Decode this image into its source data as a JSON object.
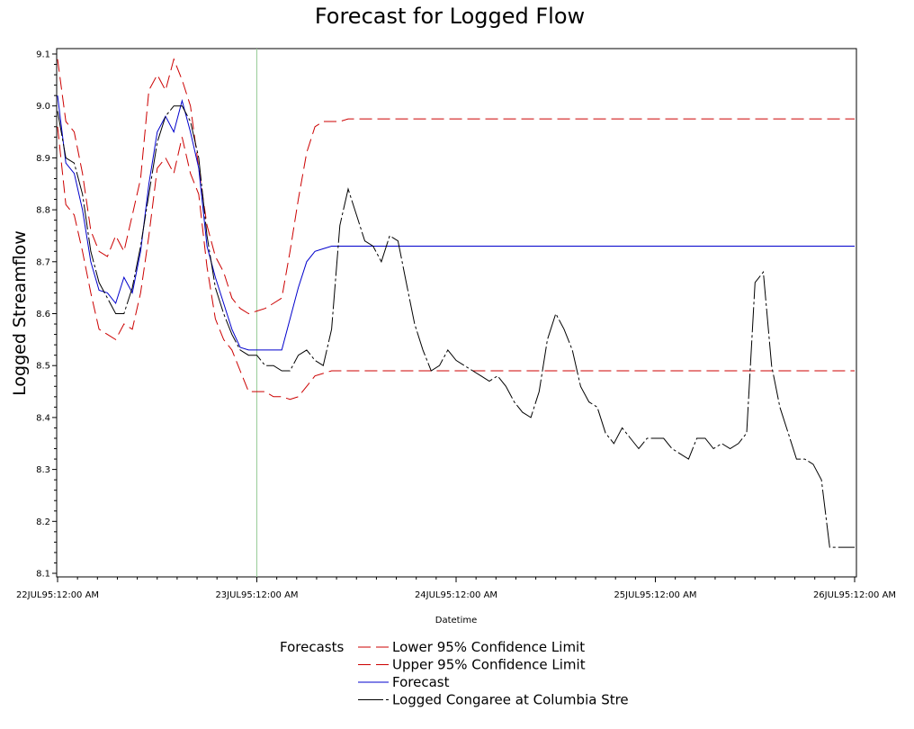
{
  "chart_data": {
    "type": "line",
    "title": "Forecast for Logged Flow",
    "xlabel": "Datetime",
    "ylabel": "Logged Streamflow",
    "x_range": [
      0,
      96
    ],
    "x_ticks": [
      {
        "pos": 0,
        "label": "22JUL95:12:00 AM"
      },
      {
        "pos": 24,
        "label": "23JUL95:12:00 AM"
      },
      {
        "pos": 48,
        "label": "24JUL95:12:00 AM"
      },
      {
        "pos": 72,
        "label": "25JUL95:12:00 AM"
      },
      {
        "pos": 96,
        "label": "26JUL95:12:00 AM"
      }
    ],
    "ylim": [
      8.09,
      9.11
    ],
    "y_ticks": [
      "8.1",
      "8.2",
      "8.3",
      "8.4",
      "8.5",
      "8.6",
      "8.7",
      "8.8",
      "8.9",
      "9.0",
      "9.1"
    ],
    "forecast_start": 24,
    "grid": false,
    "legend_title": "Forecasts",
    "legend_position": "bottom",
    "series": [
      {
        "name": "Lower 95% Confidence Limit",
        "color": "#cc0000",
        "dash": "long",
        "x": [
          0,
          1,
          2,
          3,
          4,
          5,
          6,
          7,
          8,
          9,
          10,
          11,
          12,
          13,
          14,
          15,
          16,
          17,
          18,
          19,
          20,
          21,
          22,
          23,
          24,
          25,
          26,
          27,
          28,
          29,
          30,
          31,
          32,
          33,
          34,
          35,
          36,
          40,
          50,
          60,
          70,
          80,
          90,
          96
        ],
        "y": [
          8.96,
          8.81,
          8.79,
          8.72,
          8.64,
          8.57,
          8.56,
          8.55,
          8.58,
          8.57,
          8.64,
          8.75,
          8.88,
          8.9,
          8.87,
          8.94,
          8.87,
          8.83,
          8.69,
          8.59,
          8.55,
          8.53,
          8.49,
          8.45,
          8.45,
          8.45,
          8.44,
          8.44,
          8.435,
          8.44,
          8.46,
          8.48,
          8.485,
          8.49,
          8.49,
          8.49,
          8.49,
          8.49,
          8.49,
          8.49,
          8.49,
          8.49,
          8.49,
          8.49
        ]
      },
      {
        "name": "Upper 95% Confidence Limit",
        "color": "#cc0000",
        "dash": "long",
        "x": [
          0,
          1,
          2,
          3,
          4,
          5,
          6,
          7,
          8,
          9,
          10,
          11,
          12,
          13,
          14,
          15,
          16,
          17,
          18,
          19,
          20,
          21,
          22,
          23,
          24,
          25,
          26,
          27,
          28,
          29,
          30,
          31,
          32,
          33,
          34,
          35,
          36,
          40,
          50,
          60,
          70,
          80,
          90,
          96
        ],
        "y": [
          9.09,
          8.97,
          8.95,
          8.87,
          8.76,
          8.72,
          8.71,
          8.75,
          8.72,
          8.79,
          8.86,
          9.03,
          9.06,
          9.03,
          9.09,
          9.05,
          9.0,
          8.88,
          8.77,
          8.71,
          8.68,
          8.63,
          8.61,
          8.6,
          8.605,
          8.61,
          8.62,
          8.63,
          8.72,
          8.82,
          8.91,
          8.96,
          8.97,
          8.97,
          8.97,
          8.975,
          8.975,
          8.975,
          8.975,
          8.975,
          8.975,
          8.975,
          8.975,
          8.975
        ]
      },
      {
        "name": "Forecast",
        "color": "#0000cc",
        "dash": "solid",
        "x": [
          0,
          1,
          2,
          3,
          4,
          5,
          6,
          7,
          8,
          9,
          10,
          11,
          12,
          13,
          14,
          15,
          16,
          17,
          18,
          19,
          20,
          21,
          22,
          23,
          24,
          25,
          26,
          27,
          28,
          29,
          30,
          31,
          32,
          33,
          34,
          35,
          36,
          40,
          50,
          60,
          70,
          80,
          90,
          96
        ],
        "y": [
          9.02,
          8.89,
          8.87,
          8.8,
          8.7,
          8.645,
          8.64,
          8.62,
          8.67,
          8.64,
          8.72,
          8.85,
          8.95,
          8.98,
          8.95,
          9.01,
          8.95,
          8.88,
          8.73,
          8.67,
          8.62,
          8.57,
          8.535,
          8.53,
          8.53,
          8.53,
          8.53,
          8.53,
          8.59,
          8.65,
          8.7,
          8.72,
          8.725,
          8.73,
          8.73,
          8.73,
          8.73,
          8.73,
          8.73,
          8.73,
          8.73,
          8.73,
          8.73,
          8.73
        ]
      },
      {
        "name": "Logged Congaree at Columbia Stre",
        "color": "#000000",
        "dash": "dashdot",
        "x": [
          0,
          1,
          2,
          3,
          4,
          5,
          6,
          7,
          8,
          9,
          10,
          11,
          12,
          13,
          14,
          15,
          16,
          17,
          18,
          19,
          20,
          21,
          22,
          23,
          24,
          25,
          26,
          27,
          28,
          29,
          30,
          31,
          32,
          33,
          34,
          35,
          36,
          37,
          38,
          39,
          40,
          41,
          42,
          43,
          44,
          45,
          46,
          47,
          48,
          49,
          50,
          51,
          52,
          53,
          54,
          55,
          56,
          57,
          58,
          59,
          60,
          61,
          62,
          63,
          64,
          65,
          66,
          67,
          68,
          69,
          70,
          71,
          72,
          73,
          74,
          75,
          76,
          77,
          78,
          79,
          80,
          81,
          82,
          83,
          84,
          85,
          86,
          87,
          88,
          89,
          90,
          91,
          92,
          93,
          94,
          95,
          96
        ],
        "y": [
          8.99,
          8.9,
          8.89,
          8.83,
          8.72,
          8.66,
          8.63,
          8.6,
          8.6,
          8.65,
          8.73,
          8.83,
          8.93,
          8.98,
          9.0,
          9.0,
          8.97,
          8.9,
          8.75,
          8.65,
          8.6,
          8.56,
          8.53,
          8.52,
          8.52,
          8.5,
          8.5,
          8.49,
          8.49,
          8.52,
          8.53,
          8.51,
          8.5,
          8.57,
          8.77,
          8.84,
          8.79,
          8.74,
          8.73,
          8.7,
          8.75,
          8.74,
          8.66,
          8.58,
          8.53,
          8.49,
          8.5,
          8.53,
          8.51,
          8.5,
          8.49,
          8.48,
          8.47,
          8.48,
          8.46,
          8.43,
          8.41,
          8.4,
          8.45,
          8.55,
          8.6,
          8.57,
          8.53,
          8.46,
          8.43,
          8.42,
          8.37,
          8.35,
          8.38,
          8.36,
          8.34,
          8.36,
          8.36,
          8.36,
          8.34,
          8.33,
          8.32,
          8.36,
          8.36,
          8.34,
          8.35,
          8.34,
          8.35,
          8.37,
          8.66,
          8.68,
          8.5,
          8.42,
          8.37,
          8.32,
          8.32,
          8.31,
          8.28,
          8.15,
          8.15,
          8.15,
          8.15
        ]
      }
    ]
  }
}
